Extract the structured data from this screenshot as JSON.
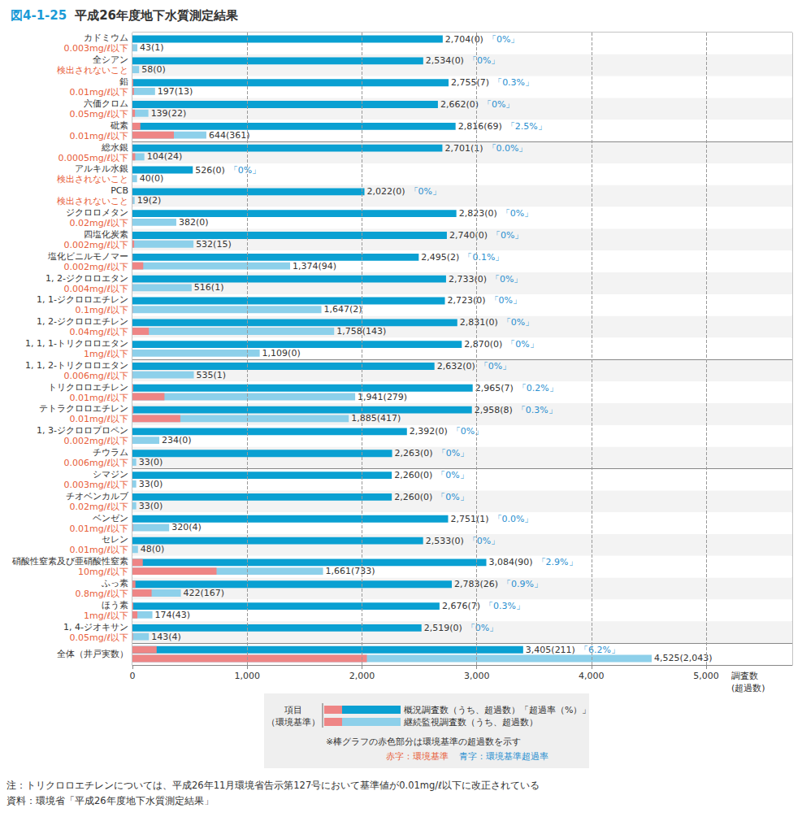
{
  "chart_data": {
    "type": "bar",
    "orientation": "horizontal",
    "figure_label": "図4-1-25",
    "title": "平成26年度地下水質測定結果",
    "categories": [
      "カドミウム",
      "全シアン",
      "鉛",
      "六価クロム",
      "砒素",
      "総水銀",
      "アルキル水銀",
      "PCB",
      "ジクロロメタン",
      "四塩化炭素",
      "塩化ビニルモノマー",
      "1, 2-ジクロロエタン",
      "1, 1-ジクロロエチレン",
      "1, 2-ジクロロエチレン",
      "1, 1, 1-トリクロロエタン",
      "1, 1, 2-トリクロロエタン",
      "トリクロロエチレン",
      "テトラクロロエチレン",
      "1, 3-ジクロロプロペン",
      "チウラム",
      "シマジン",
      "チオベンカルブ",
      "ベンゼン",
      "セレン",
      "硝酸性窒素及び亜硝酸性窒素",
      "ふっ素",
      "ほう素",
      "1, 4-ジオキサン",
      "全体（井戸実数）"
    ],
    "standards": [
      "0.003mg/ℓ以下",
      "検出されないこと",
      "0.01mg/ℓ以下",
      "0.05mg/ℓ以下",
      "0.01mg/ℓ以下",
      "0.0005mg/ℓ以下",
      "検出されないこと",
      "検出されないこと",
      "0.02mg/ℓ以下",
      "0.002mg/ℓ以下",
      "0.002mg/ℓ以下",
      "0.004mg/ℓ以下",
      "0.1mg/ℓ以下",
      "0.04mg/ℓ以下",
      "1mg/ℓ以下",
      "0.006mg/ℓ以下",
      "0.01mg/ℓ以下",
      "0.01mg/ℓ以下",
      "0.002mg/ℓ以下",
      "0.006mg/ℓ以下",
      "0.003mg/ℓ以下",
      "0.02mg/ℓ以下",
      "0.01mg/ℓ以下",
      "0.01mg/ℓ以下",
      "10mg/ℓ以下",
      "0.8mg/ℓ以下",
      "1mg/ℓ以下",
      "0.05mg/ℓ以下",
      null
    ],
    "xlabel": "調査数\n(超過数)",
    "xlim": [
      0,
      5750
    ],
    "xticks": [
      0,
      {
        "value": 1000,
        "label": "1,000"
      },
      {
        "value": 2000,
        "label": "2,000"
      },
      {
        "value": 3000,
        "label": "3,000"
      },
      {
        "value": 4000,
        "label": "4,000"
      },
      {
        "value": 5000,
        "label": "5,000"
      }
    ],
    "grid": true,
    "data_labels": true,
    "exceed_color": "#ee8585",
    "series": [
      {
        "name": "概況調査数（うち、超過数）「超過率（%）」",
        "color": "#0aa0d2",
        "values": [
          2704,
          2534,
          2755,
          2662,
          2816,
          2701,
          526,
          2022,
          2823,
          2740,
          2495,
          2733,
          2723,
          2831,
          2870,
          2632,
          2965,
          2958,
          2392,
          2263,
          2260,
          2260,
          2751,
          2533,
          3084,
          2783,
          2676,
          2519,
          3405
        ],
        "exceedances": [
          0,
          0,
          7,
          0,
          69,
          1,
          0,
          0,
          0,
          0,
          2,
          0,
          0,
          0,
          0,
          0,
          7,
          8,
          0,
          0,
          0,
          0,
          1,
          0,
          90,
          26,
          7,
          0,
          211
        ],
        "value_labels": [
          "2,704(0)",
          "2,534(0)",
          "2,755(7)",
          "2,662(0)",
          "2,816(69)",
          "2,701(1)",
          "526(0)",
          "2,022(0)",
          "2,823(0)",
          "2,740(0)",
          "2,495(2)",
          "2,733(0)",
          "2,723(0)",
          "2,831(0)",
          "2,870(0)",
          "2,632(0)",
          "2,965(7)",
          "2,958(8)",
          "2,392(0)",
          "2,263(0)",
          "2,260(0)",
          "2,260(0)",
          "2,751(1)",
          "2,533(0)",
          "3,084(90)",
          "2,783(26)",
          "2,676(7)",
          "2,519(0)",
          "3,405(211)"
        ],
        "rate_labels": [
          "「0%」",
          "「0%」",
          "「0.3%」",
          "「0%」",
          "「2.5%」",
          "「0.0%」",
          "「0%」",
          "「0%」",
          "「0%」",
          "「0%」",
          "「0.1%」",
          "「0%」",
          "「0%」",
          "「0%」",
          "「0%」",
          "「0%」",
          "「0.2%」",
          "「0.3%」",
          "「0%」",
          "「0%」",
          "「0%」",
          "「0%」",
          "「0.0%」",
          "「0%」",
          "「2.9%」",
          "「0.9%」",
          "「0.3%」",
          "「0%」",
          "「6.2%」"
        ]
      },
      {
        "name": "継続監視調査数（うち、超過数）",
        "color": "#8dd0ea",
        "values": [
          43,
          58,
          197,
          139,
          644,
          104,
          40,
          19,
          382,
          532,
          1374,
          516,
          1647,
          1758,
          1109,
          535,
          1941,
          1885,
          234,
          33,
          33,
          33,
          320,
          48,
          1661,
          422,
          174,
          143,
          4525
        ],
        "exceedances": [
          1,
          0,
          13,
          22,
          361,
          24,
          0,
          2,
          0,
          15,
          94,
          1,
          2,
          143,
          0,
          1,
          279,
          417,
          0,
          0,
          0,
          0,
          4,
          0,
          733,
          167,
          43,
          4,
          2043
        ],
        "value_labels": [
          "43(1)",
          "58(0)",
          "197(13)",
          "139(22)",
          "644(361)",
          "104(24)",
          "40(0)",
          "19(2)",
          "382(0)",
          "532(15)",
          "1,374(94)",
          "516(1)",
          "1,647(2)",
          "1,758(143)",
          "1,109(0)",
          "535(1)",
          "1,941(279)",
          "1,885(417)",
          "234(0)",
          "33(0)",
          "33(0)",
          "33(0)",
          "320(4)",
          "48(0)",
          "1,661(733)",
          "422(167)",
          "174(43)",
          "143(4)",
          "4,525(2,043)"
        ]
      }
    ],
    "legend_box": {
      "item_label": "項目",
      "item_sub": "（環境基準）",
      "note": "※棒グラフの赤色部分は環境基準の超過数を示す",
      "standard_key": "赤字：環境基準",
      "rate_key": "青字：環境基準超過率"
    },
    "notes": [
      "注：トリクロロエチレンについては、平成26年11月環境省告示第127号において基準値が0.01mg/ℓ以下に改正されている",
      "資料：環境省「平成26年度地下水質測定結果」"
    ]
  }
}
